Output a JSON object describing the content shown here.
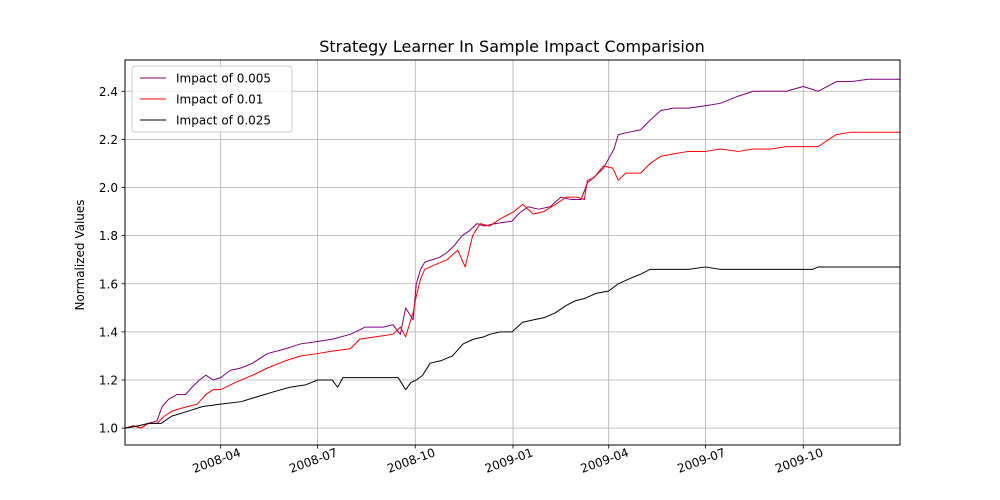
{
  "chart_data": {
    "type": "line",
    "title": "Strategy Learner In Sample Impact Comparision",
    "xlabel": "",
    "ylabel": "Normalized Values",
    "xlim": [
      "2008-01-02",
      "2009-12-31"
    ],
    "ylim": [
      0.93,
      2.53
    ],
    "xticks": [
      {
        "date": "2008-04-01",
        "label": "2008-04"
      },
      {
        "date": "2008-07-01",
        "label": "2008-07"
      },
      {
        "date": "2008-10-01",
        "label": "2008-10"
      },
      {
        "date": "2009-01-01",
        "label": "2009-01"
      },
      {
        "date": "2009-04-01",
        "label": "2009-04"
      },
      {
        "date": "2009-07-01",
        "label": "2009-07"
      },
      {
        "date": "2009-10-01",
        "label": "2009-10"
      }
    ],
    "yticks": [
      {
        "value": 1.0,
        "label": "1.0"
      },
      {
        "value": 1.2,
        "label": "1.2"
      },
      {
        "value": 1.4,
        "label": "1.4"
      },
      {
        "value": 1.6,
        "label": "1.6"
      },
      {
        "value": 1.8,
        "label": "1.8"
      },
      {
        "value": 2.0,
        "label": "2.0"
      },
      {
        "value": 2.2,
        "label": "2.2"
      },
      {
        "value": 2.4,
        "label": "2.4"
      }
    ],
    "grid": true,
    "legend_position": "top-left",
    "series": [
      {
        "name": "Impact of 0.005",
        "color": "#800080",
        "points": [
          [
            "2008-01-02",
            1.0
          ],
          [
            "2008-01-10",
            1.01
          ],
          [
            "2008-01-17",
            1.0
          ],
          [
            "2008-01-24",
            1.02
          ],
          [
            "2008-02-01",
            1.03
          ],
          [
            "2008-02-06",
            1.09
          ],
          [
            "2008-02-12",
            1.12
          ],
          [
            "2008-02-20",
            1.14
          ],
          [
            "2008-02-28",
            1.14
          ],
          [
            "2008-03-05",
            1.17
          ],
          [
            "2008-03-12",
            1.2
          ],
          [
            "2008-03-18",
            1.22
          ],
          [
            "2008-03-25",
            1.2
          ],
          [
            "2008-04-01",
            1.21
          ],
          [
            "2008-04-10",
            1.24
          ],
          [
            "2008-04-20",
            1.25
          ],
          [
            "2008-05-01",
            1.27
          ],
          [
            "2008-05-15",
            1.31
          ],
          [
            "2008-06-01",
            1.33
          ],
          [
            "2008-06-15",
            1.35
          ],
          [
            "2008-07-01",
            1.36
          ],
          [
            "2008-07-15",
            1.37
          ],
          [
            "2008-08-01",
            1.39
          ],
          [
            "2008-08-15",
            1.42
          ],
          [
            "2008-09-01",
            1.42
          ],
          [
            "2008-09-10",
            1.43
          ],
          [
            "2008-09-17",
            1.39
          ],
          [
            "2008-09-22",
            1.5
          ],
          [
            "2008-09-29",
            1.45
          ],
          [
            "2008-10-02",
            1.6
          ],
          [
            "2008-10-06",
            1.66
          ],
          [
            "2008-10-10",
            1.69
          ],
          [
            "2008-10-17",
            1.7
          ],
          [
            "2008-10-24",
            1.71
          ],
          [
            "2008-10-31",
            1.73
          ],
          [
            "2008-11-07",
            1.76
          ],
          [
            "2008-11-14",
            1.8
          ],
          [
            "2008-11-21",
            1.82
          ],
          [
            "2008-11-28",
            1.85
          ],
          [
            "2008-12-05",
            1.84
          ],
          [
            "2008-12-15",
            1.85
          ],
          [
            "2008-12-31",
            1.86
          ],
          [
            "2009-01-06",
            1.89
          ],
          [
            "2009-01-15",
            1.92
          ],
          [
            "2009-01-25",
            1.91
          ],
          [
            "2009-02-05",
            1.92
          ],
          [
            "2009-02-15",
            1.96
          ],
          [
            "2009-02-25",
            1.95
          ],
          [
            "2009-03-06",
            1.95
          ],
          [
            "2009-03-12",
            2.02
          ],
          [
            "2009-03-20",
            2.05
          ],
          [
            "2009-03-27",
            2.08
          ],
          [
            "2009-04-01",
            2.12
          ],
          [
            "2009-04-06",
            2.16
          ],
          [
            "2009-04-10",
            2.22
          ],
          [
            "2009-04-20",
            2.23
          ],
          [
            "2009-05-01",
            2.24
          ],
          [
            "2009-05-10",
            2.28
          ],
          [
            "2009-05-20",
            2.32
          ],
          [
            "2009-06-01",
            2.33
          ],
          [
            "2009-06-15",
            2.33
          ],
          [
            "2009-07-01",
            2.34
          ],
          [
            "2009-07-15",
            2.35
          ],
          [
            "2009-08-01",
            2.38
          ],
          [
            "2009-08-15",
            2.4
          ],
          [
            "2009-09-01",
            2.4
          ],
          [
            "2009-09-15",
            2.4
          ],
          [
            "2009-10-01",
            2.42
          ],
          [
            "2009-10-15",
            2.4
          ],
          [
            "2009-11-01",
            2.44
          ],
          [
            "2009-11-15",
            2.44
          ],
          [
            "2009-12-01",
            2.45
          ],
          [
            "2009-12-31",
            2.45
          ]
        ]
      },
      {
        "name": "Impact of 0.01",
        "color": "#ff0000",
        "points": [
          [
            "2008-01-02",
            1.0
          ],
          [
            "2008-01-10",
            1.01
          ],
          [
            "2008-01-17",
            1.0
          ],
          [
            "2008-01-24",
            1.02
          ],
          [
            "2008-02-01",
            1.02
          ],
          [
            "2008-02-08",
            1.05
          ],
          [
            "2008-02-15",
            1.07
          ],
          [
            "2008-02-22",
            1.08
          ],
          [
            "2008-03-01",
            1.09
          ],
          [
            "2008-03-10",
            1.1
          ],
          [
            "2008-03-18",
            1.14
          ],
          [
            "2008-03-25",
            1.16
          ],
          [
            "2008-04-01",
            1.16
          ],
          [
            "2008-04-15",
            1.19
          ],
          [
            "2008-05-01",
            1.22
          ],
          [
            "2008-05-15",
            1.25
          ],
          [
            "2008-06-01",
            1.28
          ],
          [
            "2008-06-15",
            1.3
          ],
          [
            "2008-07-01",
            1.31
          ],
          [
            "2008-07-15",
            1.32
          ],
          [
            "2008-08-01",
            1.33
          ],
          [
            "2008-08-10",
            1.37
          ],
          [
            "2008-08-25",
            1.38
          ],
          [
            "2008-09-10",
            1.39
          ],
          [
            "2008-09-17",
            1.42
          ],
          [
            "2008-09-22",
            1.38
          ],
          [
            "2008-09-29",
            1.48
          ],
          [
            "2008-10-02",
            1.55
          ],
          [
            "2008-10-06",
            1.62
          ],
          [
            "2008-10-10",
            1.66
          ],
          [
            "2008-10-20",
            1.68
          ],
          [
            "2008-10-31",
            1.7
          ],
          [
            "2008-11-10",
            1.74
          ],
          [
            "2008-11-17",
            1.67
          ],
          [
            "2008-11-24",
            1.8
          ],
          [
            "2008-12-01",
            1.85
          ],
          [
            "2008-12-10",
            1.84
          ],
          [
            "2008-12-20",
            1.87
          ],
          [
            "2009-01-02",
            1.9
          ],
          [
            "2009-01-10",
            1.93
          ],
          [
            "2009-01-20",
            1.89
          ],
          [
            "2009-01-30",
            1.9
          ],
          [
            "2009-02-10",
            1.93
          ],
          [
            "2009-02-20",
            1.96
          ],
          [
            "2009-03-02",
            1.96
          ],
          [
            "2009-03-09",
            1.95
          ],
          [
            "2009-03-12",
            2.03
          ],
          [
            "2009-03-18",
            2.04
          ],
          [
            "2009-03-27",
            2.09
          ],
          [
            "2009-04-05",
            2.08
          ],
          [
            "2009-04-10",
            2.03
          ],
          [
            "2009-04-17",
            2.06
          ],
          [
            "2009-05-01",
            2.06
          ],
          [
            "2009-05-10",
            2.1
          ],
          [
            "2009-05-20",
            2.13
          ],
          [
            "2009-06-01",
            2.14
          ],
          [
            "2009-06-15",
            2.15
          ],
          [
            "2009-07-01",
            2.15
          ],
          [
            "2009-07-15",
            2.16
          ],
          [
            "2009-08-01",
            2.15
          ],
          [
            "2009-08-15",
            2.16
          ],
          [
            "2009-09-01",
            2.16
          ],
          [
            "2009-09-15",
            2.17
          ],
          [
            "2009-10-01",
            2.17
          ],
          [
            "2009-10-15",
            2.17
          ],
          [
            "2009-10-25",
            2.2
          ],
          [
            "2009-11-01",
            2.22
          ],
          [
            "2009-11-15",
            2.23
          ],
          [
            "2009-12-01",
            2.23
          ],
          [
            "2009-12-31",
            2.23
          ]
        ]
      },
      {
        "name": "Impact of 0.025",
        "color": "#000000",
        "points": [
          [
            "2008-01-02",
            1.0
          ],
          [
            "2008-01-15",
            1.01
          ],
          [
            "2008-01-24",
            1.02
          ],
          [
            "2008-02-05",
            1.02
          ],
          [
            "2008-02-15",
            1.05
          ],
          [
            "2008-03-01",
            1.07
          ],
          [
            "2008-03-15",
            1.09
          ],
          [
            "2008-04-01",
            1.1
          ],
          [
            "2008-04-20",
            1.11
          ],
          [
            "2008-05-05",
            1.13
          ],
          [
            "2008-05-20",
            1.15
          ],
          [
            "2008-06-05",
            1.17
          ],
          [
            "2008-06-20",
            1.18
          ],
          [
            "2008-07-01",
            1.2
          ],
          [
            "2008-07-15",
            1.2
          ],
          [
            "2008-07-20",
            1.17
          ],
          [
            "2008-07-25",
            1.21
          ],
          [
            "2008-08-05",
            1.21
          ],
          [
            "2008-08-20",
            1.21
          ],
          [
            "2008-09-05",
            1.21
          ],
          [
            "2008-09-15",
            1.21
          ],
          [
            "2008-09-22",
            1.16
          ],
          [
            "2008-09-27",
            1.19
          ],
          [
            "2008-10-02",
            1.2
          ],
          [
            "2008-10-08",
            1.22
          ],
          [
            "2008-10-15",
            1.27
          ],
          [
            "2008-10-25",
            1.28
          ],
          [
            "2008-11-05",
            1.3
          ],
          [
            "2008-11-15",
            1.35
          ],
          [
            "2008-11-25",
            1.37
          ],
          [
            "2008-12-05",
            1.38
          ],
          [
            "2008-12-10",
            1.39
          ],
          [
            "2008-12-20",
            1.4
          ],
          [
            "2008-12-31",
            1.4
          ],
          [
            "2009-01-10",
            1.44
          ],
          [
            "2009-01-20",
            1.45
          ],
          [
            "2009-01-31",
            1.46
          ],
          [
            "2009-02-10",
            1.48
          ],
          [
            "2009-02-20",
            1.51
          ],
          [
            "2009-03-01",
            1.53
          ],
          [
            "2009-03-10",
            1.54
          ],
          [
            "2009-03-20",
            1.56
          ],
          [
            "2009-04-01",
            1.57
          ],
          [
            "2009-04-10",
            1.6
          ],
          [
            "2009-04-20",
            1.62
          ],
          [
            "2009-05-01",
            1.64
          ],
          [
            "2009-05-10",
            1.66
          ],
          [
            "2009-06-01",
            1.66
          ],
          [
            "2009-06-15",
            1.66
          ],
          [
            "2009-07-01",
            1.67
          ],
          [
            "2009-07-15",
            1.66
          ],
          [
            "2009-08-01",
            1.66
          ],
          [
            "2009-08-15",
            1.66
          ],
          [
            "2009-09-01",
            1.66
          ],
          [
            "2009-09-15",
            1.66
          ],
          [
            "2009-10-01",
            1.66
          ],
          [
            "2009-10-10",
            1.66
          ],
          [
            "2009-10-15",
            1.67
          ],
          [
            "2009-11-01",
            1.67
          ],
          [
            "2009-12-01",
            1.67
          ],
          [
            "2009-12-31",
            1.67
          ]
        ]
      }
    ]
  }
}
